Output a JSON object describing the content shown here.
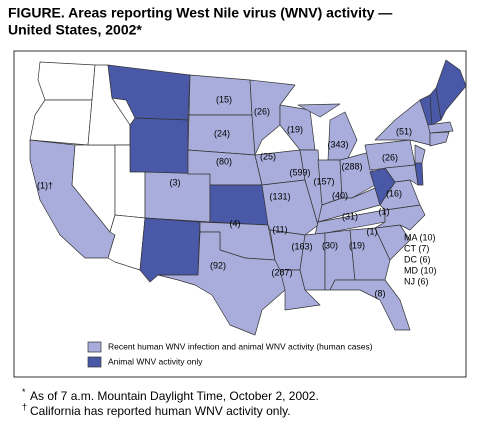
{
  "title_lines": [
    "FIGURE. Areas reporting West Nile virus (WNV) activity —",
    "United States, 2002*"
  ],
  "map_labels": [
    "(15)",
    "(26)",
    "(24)",
    "(19)",
    "(343)",
    "(51)",
    "(80)",
    "(25)",
    "(599)",
    "(157)",
    "(288)",
    "(26)",
    "(3)",
    "(131)",
    "(40)",
    "(16)",
    "(4)",
    "(31)",
    "(1)",
    "(11)",
    "(1)",
    "(163)",
    "(30)",
    "(19)",
    "(287)",
    "(92)",
    "(8)",
    "(1)†"
  ],
  "side_list": [
    "MA (10)",
    "CT (7)",
    "DC (6)",
    "MD (10)",
    "NJ (6)"
  ],
  "legend": [
    {
      "label": "Recent human WNV infection and animal WNV activity (human cases)",
      "color": "#a9addb"
    },
    {
      "label": "Animal WNV activity only",
      "color": "#4a58a8"
    }
  ],
  "footnotes": [
    {
      "marker": "*",
      "text": "As of 7 a.m. Mountain Daylight Time, October 2, 2002."
    },
    {
      "marker": "†",
      "text": "California has reported human WNV activity only."
    }
  ]
}
